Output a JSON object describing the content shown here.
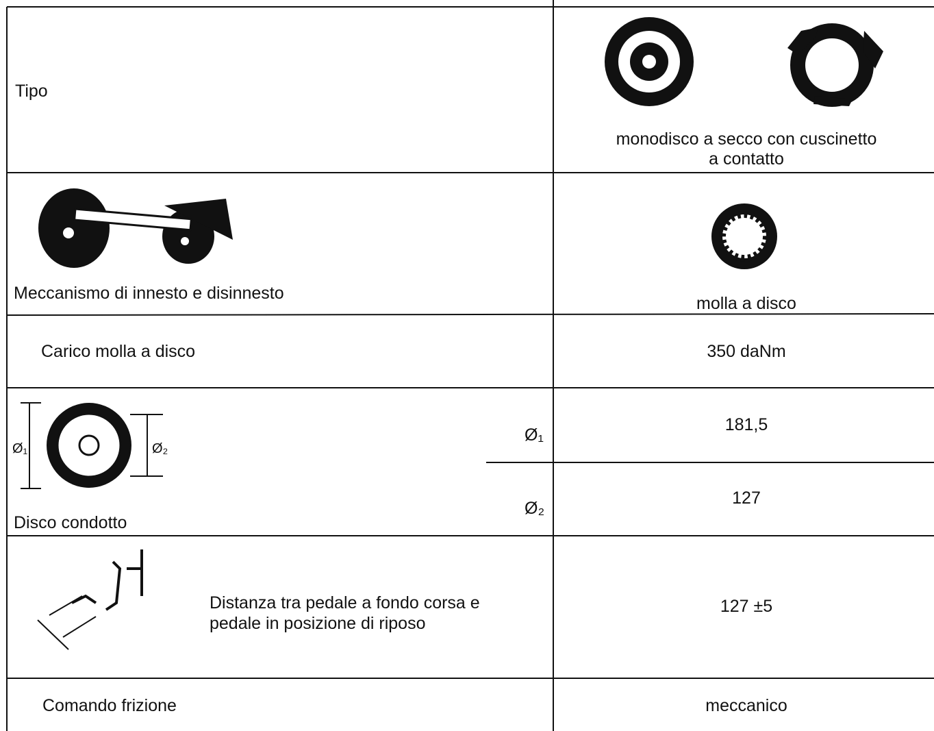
{
  "table": {
    "rows": [
      {
        "label": "Tipo",
        "value_lines": [
          "monodisco a secco con cuscinetto",
          "a contatto"
        ]
      },
      {
        "label": "Meccanismo di innesto e disinnesto",
        "value": "molla a disco"
      },
      {
        "label": "Carico molla a disco",
        "value": "350 daNm"
      },
      {
        "label": "Disco condotto",
        "figure_labels": [
          "Ø₁",
          "Ø₂"
        ],
        "sub_rows": [
          {
            "symbol": "Ø₁",
            "value": "181,5"
          },
          {
            "symbol": "Ø₂",
            "value": "127"
          }
        ]
      },
      {
        "description_lines": [
          "Distanza tra pedale a fondo corsa e",
          "pedale in posizione di riposo"
        ],
        "value": "127 ±5"
      },
      {
        "label": "Comando frizione",
        "value": "meccanico"
      }
    ]
  }
}
